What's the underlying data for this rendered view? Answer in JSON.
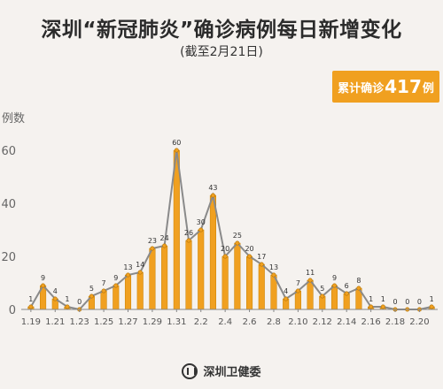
{
  "title": "深圳“新冠肺炎”确诊病例每日新增变化",
  "subtitle": "(截至2月21日)",
  "total_box": {
    "prefix": "累计确诊",
    "number": "417",
    "suffix": "例"
  },
  "footer": {
    "org": "深圳卫健委",
    "logo_icon": "shenzhen-health-logo-icon"
  },
  "colors": {
    "bar": "#f0a020",
    "bar_edge": "#c98000",
    "line": "#8a8a8a",
    "point": "#f0a020",
    "axis": "#888888"
  },
  "chart_data": {
    "type": "bar",
    "ylabel": "例数",
    "xlabel": "",
    "ylim": [
      0,
      60
    ],
    "y_ticks": [
      0,
      20,
      40,
      60
    ],
    "grid": false,
    "overlay_line": true,
    "categories": [
      "1.19",
      "1.20",
      "1.21",
      "1.22",
      "1.23",
      "1.24",
      "1.25",
      "1.26",
      "1.27",
      "1.28",
      "1.29",
      "1.30",
      "1.31",
      "2.1",
      "2.2",
      "2.3",
      "2.4",
      "2.5",
      "2.6",
      "2.7",
      "2.8",
      "2.9",
      "2.10",
      "2.11",
      "2.12",
      "2.13",
      "2.14",
      "2.15",
      "2.16",
      "2.17",
      "2.18",
      "2.19",
      "2.20",
      "2.21"
    ],
    "tick_labels": [
      "1.19",
      "1.21",
      "1.23",
      "1.25",
      "1.27",
      "1.29",
      "1.31",
      "2.2",
      "2.4",
      "2.6",
      "2.8",
      "2.10",
      "2.12",
      "2.14",
      "2.16",
      "2.18",
      "2.20"
    ],
    "values": [
      1,
      9,
      4,
      1,
      0,
      5,
      7,
      9,
      13,
      14,
      23,
      24,
      60,
      26,
      30,
      43,
      20,
      25,
      20,
      17,
      13,
      4,
      7,
      11,
      5,
      9,
      6,
      8,
      1,
      1,
      0,
      0,
      0,
      1
    ]
  }
}
